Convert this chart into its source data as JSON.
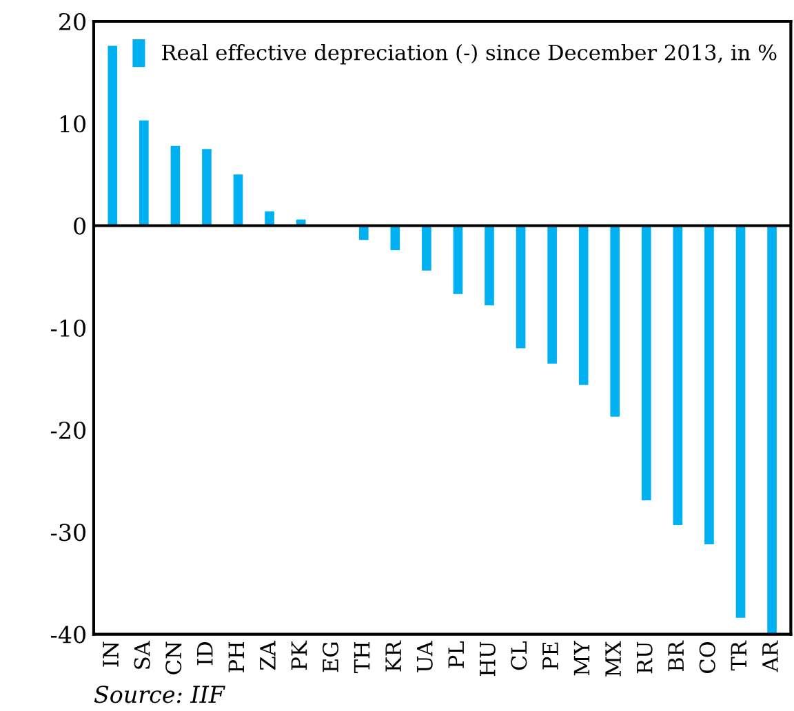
{
  "chart_data": {
    "type": "bar",
    "categories": [
      "IN",
      "SA",
      "CN",
      "ID",
      "PH",
      "ZA",
      "PK",
      "EG",
      "TH",
      "KR",
      "UA",
      "PL",
      "HU",
      "CL",
      "PE",
      "MY",
      "MX",
      "RU",
      "BR",
      "CO",
      "TR",
      "AR"
    ],
    "series": [
      {
        "name": "Real effective depreciation (-) since December 2013, in %",
        "color": "#00b0f0",
        "values": [
          17.6,
          10.3,
          7.8,
          7.5,
          5.0,
          1.4,
          0.6,
          0,
          -1.4,
          -2.4,
          -4.4,
          -6.7,
          -7.8,
          -12.0,
          -13.5,
          -15.6,
          -18.7,
          -26.9,
          -29.3,
          -31.2,
          -38.4,
          -40
        ]
      }
    ],
    "ylim": [
      -40,
      20
    ],
    "yticks": [
      -40,
      -30,
      -20,
      -10,
      0,
      10,
      20
    ],
    "legend": "top left",
    "annotations": [
      "Source: IIF"
    ]
  }
}
